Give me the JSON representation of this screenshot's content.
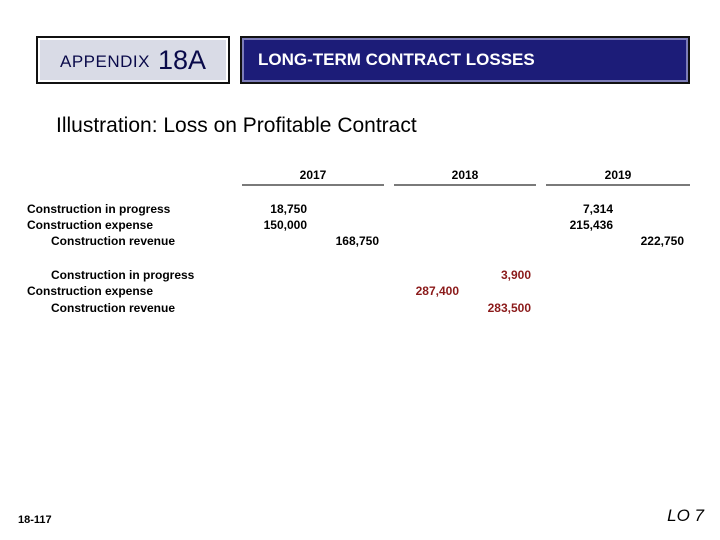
{
  "header": {
    "appendix_word": "APPENDIX",
    "appendix_number": "18A",
    "title": "LONG-TERM CONTRACT LOSSES"
  },
  "subtitle": {
    "lead": "Illustration:",
    "rest": " Loss on Profitable Contract"
  },
  "years": [
    "2017",
    "2018",
    "2019"
  ],
  "entries": {
    "first": {
      "cip": "Construction in progress",
      "expense": "Construction expense",
      "revenue": "Construction revenue"
    },
    "second": {
      "cip": "Construction in progress",
      "expense": "Construction expense",
      "revenue": "Construction revenue"
    }
  },
  "amounts": {
    "y2017": {
      "cip_dr": "18,750",
      "expense_dr": "150,000",
      "revenue_cr": "168,750"
    },
    "y2018": {
      "cip_cr": "3,900",
      "expense_dr": "287,400",
      "revenue_cr": "283,500"
    },
    "y2019": {
      "cip_dr": "7,314",
      "expense_dr": "215,436",
      "revenue_cr": "222,750"
    }
  },
  "colors": {
    "navy": "#1c1c78",
    "loss_red": "#8b1a1a"
  },
  "footer": {
    "page": "18-117",
    "lo": "LO 7"
  }
}
